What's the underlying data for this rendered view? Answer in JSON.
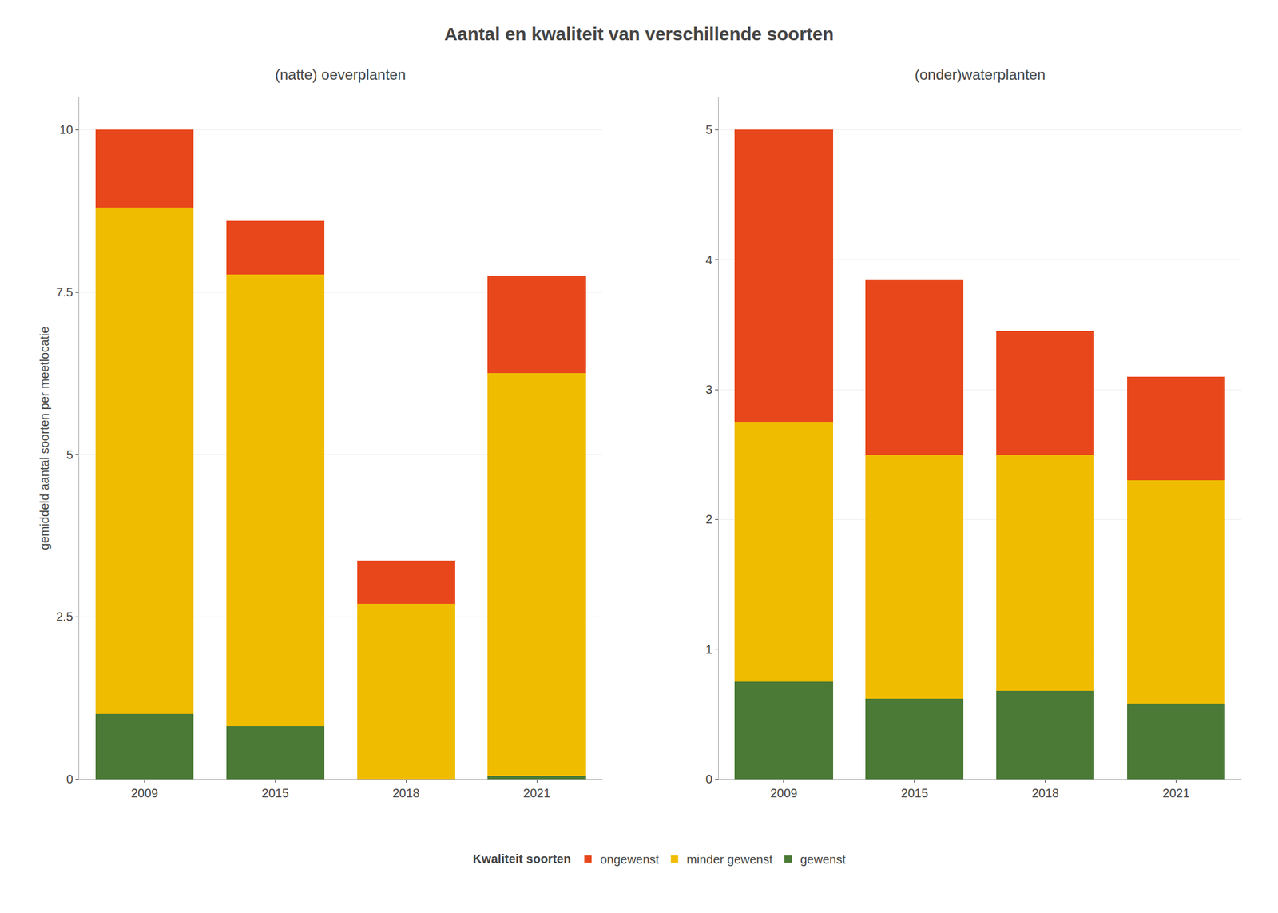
{
  "chart_data": [
    {
      "type": "bar",
      "stacked": true,
      "title": "Aantal en kwaliteit van verschillende soorten",
      "subtitle": "(natte) oeverplanten",
      "ylabel": "gemiddeld aantal soorten per meetlocatie",
      "legend": "bottom",
      "legend_title": "Kwaliteit soorten",
      "categories": [
        "2009",
        "2015",
        "2018",
        "2021"
      ],
      "series": [
        {
          "name": "gewenst",
          "color": "#4A7A35",
          "values": [
            1.0,
            0.82,
            0.0,
            0.05
          ]
        },
        {
          "name": "minder gewenst",
          "color": "#F0BC00",
          "values": [
            7.8,
            6.95,
            2.7,
            6.2
          ]
        },
        {
          "name": "ongewenst",
          "color": "#E8471C",
          "values": [
            1.2,
            0.83,
            0.67,
            1.5
          ]
        }
      ],
      "ylim": [
        0,
        10.5
      ],
      "yticks": [
        0,
        2.5,
        5,
        7.5,
        10
      ],
      "grid": true
    },
    {
      "type": "bar",
      "stacked": true,
      "subtitle": "(onder)waterplanten",
      "categories": [
        "2009",
        "2015",
        "2018",
        "2021"
      ],
      "series": [
        {
          "name": "gewenst",
          "color": "#4A7A35",
          "values": [
            0.75,
            0.62,
            0.68,
            0.58
          ]
        },
        {
          "name": "minder gewenst",
          "color": "#F0BC00",
          "values": [
            2.0,
            1.88,
            1.82,
            1.72
          ]
        },
        {
          "name": "ongewenst",
          "color": "#E8471C",
          "values": [
            2.25,
            1.35,
            0.95,
            0.8
          ]
        }
      ],
      "ylim": [
        0,
        5.25
      ],
      "yticks": [
        0,
        1,
        2,
        3,
        4,
        5
      ],
      "grid": true
    }
  ]
}
